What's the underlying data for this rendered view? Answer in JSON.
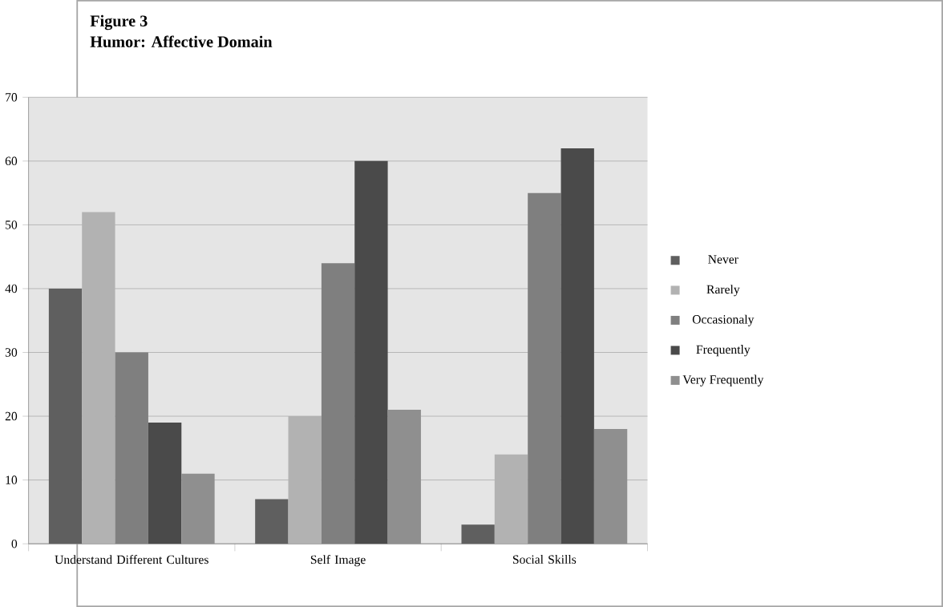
{
  "chart_data": {
    "type": "bar",
    "title": "Figure 3",
    "subtitle": "Humor:  Affective Domain",
    "categories": [
      "Understand Different Cultures",
      "Self Image",
      "Social Skills"
    ],
    "series": [
      {
        "name": "Never",
        "color": "#5f5f5f",
        "values": [
          40,
          7,
          3
        ]
      },
      {
        "name": "Rarely",
        "color": "#b2b2b2",
        "values": [
          52,
          20,
          14
        ]
      },
      {
        "name": "Occasionaly",
        "color": "#7f7f7f",
        "values": [
          30,
          44,
          55
        ]
      },
      {
        "name": "Frequently",
        "color": "#4a4a4a",
        "values": [
          19,
          60,
          62
        ]
      },
      {
        "name": "Very Frequently",
        "color": "#8f8f8f",
        "values": [
          11,
          21,
          18
        ]
      }
    ],
    "ylim": [
      0,
      70
    ],
    "yticks": [
      0,
      10,
      20,
      30,
      40,
      50,
      60,
      70
    ],
    "grid": "y",
    "legend": "right"
  }
}
